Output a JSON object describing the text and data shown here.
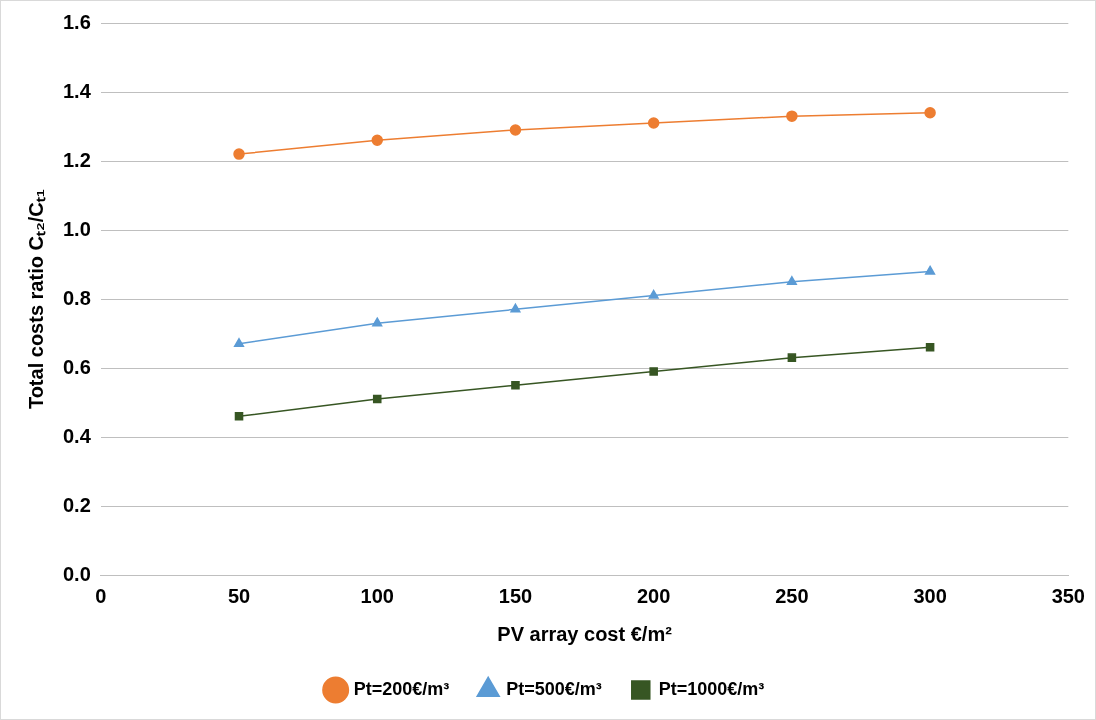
{
  "chart_data": {
    "type": "line",
    "xlabel": "PV array cost €/m²",
    "ylabel": "Total costs ratio Cₜ₂/Cₜ₁",
    "x": [
      50,
      100,
      150,
      200,
      250,
      300
    ],
    "series": [
      {
        "name": "Pt=200€/m³",
        "color": "#ed7d31",
        "marker": "circle",
        "values": [
          1.22,
          1.26,
          1.29,
          1.31,
          1.33,
          1.34
        ]
      },
      {
        "name": "Pt=500€/m³",
        "color": "#5b9bd5",
        "marker": "triangle",
        "values": [
          0.67,
          0.73,
          0.77,
          0.81,
          0.85,
          0.88
        ]
      },
      {
        "name": "Pt=1000€/m³",
        "color": "#375623",
        "marker": "square",
        "values": [
          0.46,
          0.51,
          0.55,
          0.59,
          0.63,
          0.66
        ]
      }
    ],
    "xlim": [
      0,
      350
    ],
    "xticks": [
      0,
      50,
      100,
      150,
      200,
      250,
      300,
      350
    ],
    "ylim": [
      0,
      1.6
    ],
    "yticks": [
      {
        "value": 0,
        "label": "0.0"
      },
      {
        "value": 0.2,
        "label": "0.2"
      },
      {
        "value": 0.4,
        "label": "0.4"
      },
      {
        "value": 0.6,
        "label": "0.6"
      },
      {
        "value": 0.8,
        "label": "0.8"
      },
      {
        "value": 1,
        "label": "1.0"
      },
      {
        "value": 1.2,
        "label": "1.2"
      },
      {
        "value": 1.4,
        "label": "1.4"
      },
      {
        "value": 1.6,
        "label": "1.6"
      }
    ],
    "grid": "y",
    "legend": "bottom"
  }
}
